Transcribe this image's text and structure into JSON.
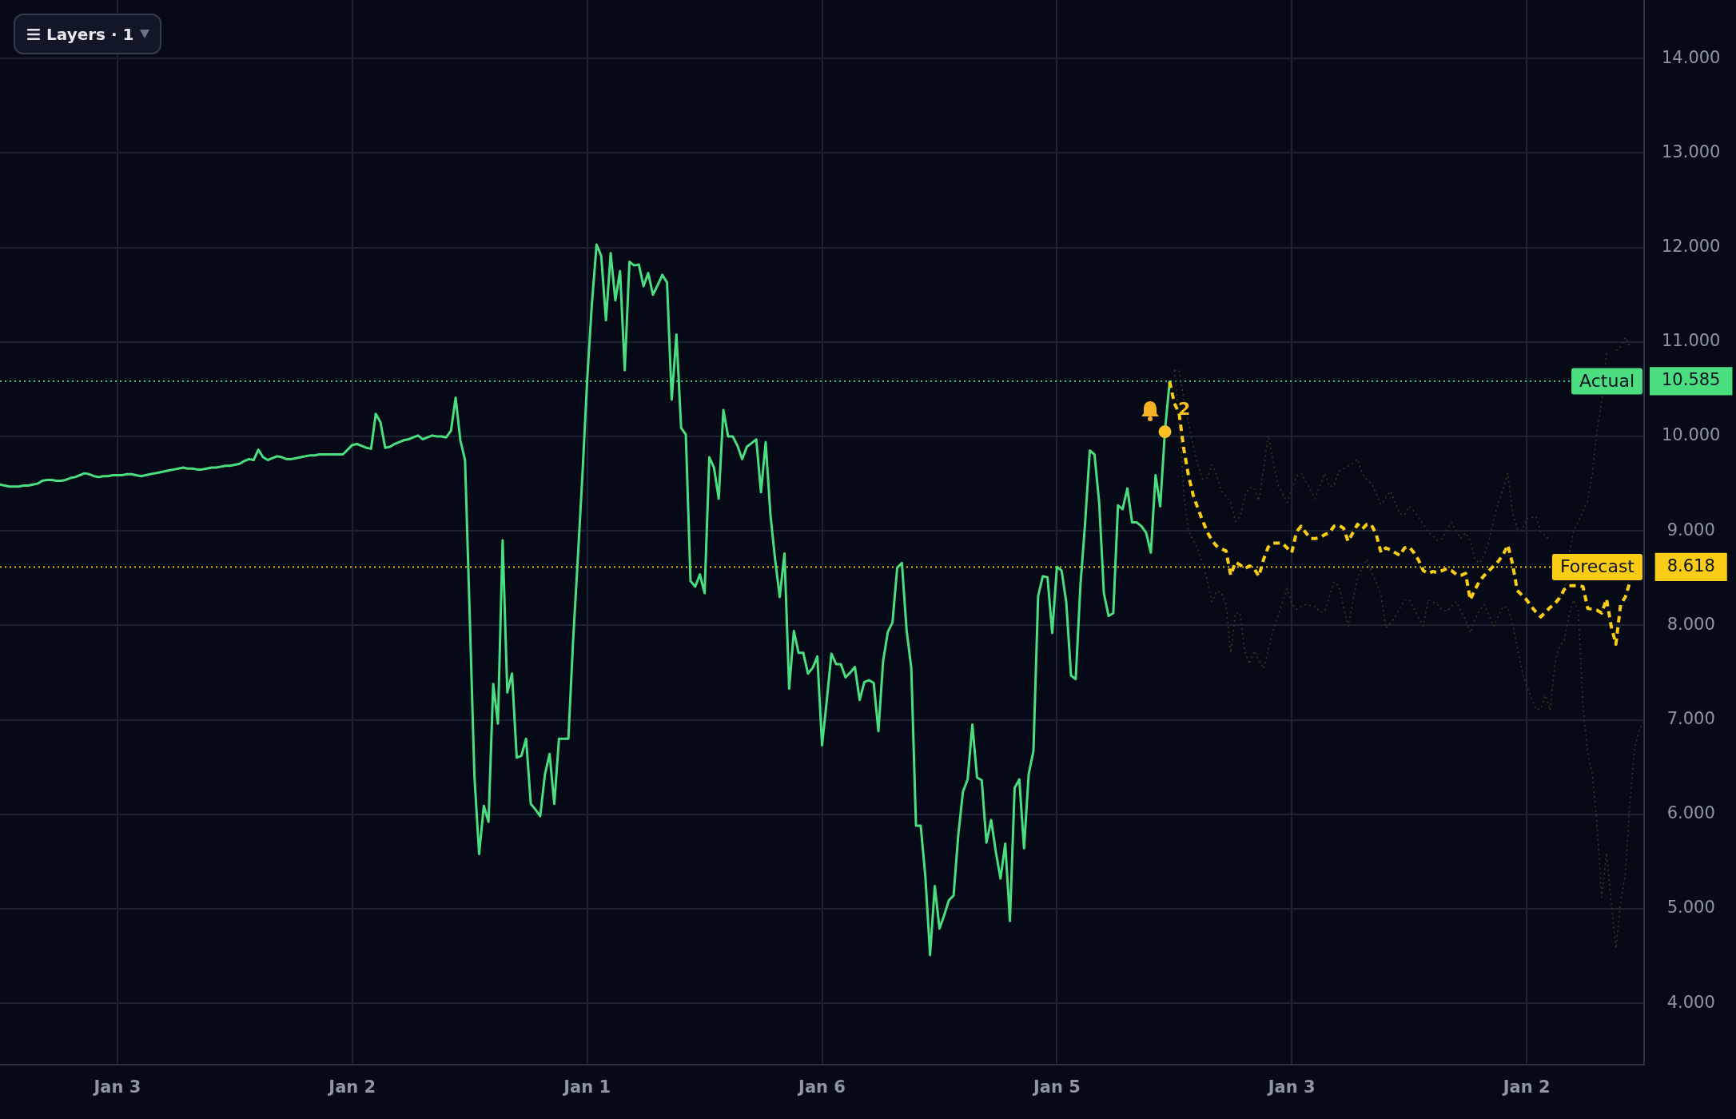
{
  "chart_data": {
    "type": "line",
    "categories": [
      null,
      null,
      null,
      null,
      null,
      null,
      null,
      null,
      null,
      null,
      null,
      null,
      null,
      null,
      null,
      null,
      null,
      null,
      null,
      null,
      null,
      null,
      null,
      null,
      null,
      "Jan 3",
      null,
      null,
      null,
      null,
      null,
      null,
      null,
      null,
      null,
      null,
      null,
      null,
      null,
      null,
      null,
      null,
      null,
      null,
      null,
      null,
      null,
      null,
      null,
      null,
      null,
      null,
      null,
      null,
      null,
      null,
      null,
      null,
      null,
      null,
      null,
      null,
      null,
      null,
      null,
      null,
      null,
      null,
      null,
      null,
      null,
      null,
      null,
      null,
      null,
      "Jan 2",
      null,
      null,
      null,
      null,
      null,
      null,
      null,
      null,
      null,
      null,
      null,
      null,
      null,
      null,
      null,
      null,
      null,
      null,
      null,
      null,
      null,
      null,
      null,
      null,
      null,
      null,
      null,
      null,
      null,
      null,
      null,
      null,
      null,
      null,
      null,
      null,
      null,
      null,
      null,
      null,
      null,
      null,
      null,
      null,
      null,
      null,
      null,
      null,
      null,
      "Jan 1",
      null,
      null,
      null,
      null,
      null,
      null,
      null,
      null,
      null,
      null,
      null,
      null,
      null,
      null,
      null,
      null,
      null,
      null,
      null,
      null,
      null,
      null,
      null,
      null,
      null,
      null,
      null,
      null,
      null,
      null,
      null,
      null,
      null,
      null,
      null,
      null,
      null,
      null,
      null,
      null,
      null,
      null,
      null,
      null,
      null,
      null,
      null,
      null,
      null,
      "Jan 6",
      null,
      null,
      null,
      null,
      null,
      null,
      null,
      null,
      null,
      null,
      null,
      null,
      null,
      null,
      null,
      null,
      null,
      null,
      null,
      null,
      null,
      null,
      null,
      null,
      null,
      null,
      null,
      null,
      null,
      null,
      null,
      null,
      null,
      null,
      null,
      null,
      null,
      null,
      null,
      null,
      null,
      null,
      null,
      null,
      null,
      null,
      null,
      null,
      null,
      "Jan 5",
      null,
      null,
      null,
      null,
      null,
      null,
      null,
      null,
      null,
      null,
      null,
      null,
      null,
      null,
      null,
      null,
      null,
      null,
      null,
      null,
      null,
      null,
      null,
      null,
      null,
      null,
      null,
      null,
      null,
      null,
      null,
      null,
      null,
      null,
      null,
      null,
      null,
      null,
      null,
      null,
      null,
      null,
      null,
      null,
      null,
      null,
      null,
      null,
      null,
      "Jan 3",
      null,
      null,
      null,
      null,
      null,
      null,
      null,
      null,
      null,
      null,
      null,
      null,
      null,
      null,
      null,
      null,
      null,
      null,
      null,
      null,
      null,
      null,
      null,
      null,
      null,
      null,
      null,
      null,
      null,
      null,
      null,
      null,
      null,
      null,
      null,
      null,
      null,
      null,
      null,
      null,
      null,
      null,
      null,
      null,
      null,
      null,
      null,
      null,
      null,
      "Jan 2",
      null,
      null,
      null,
      null,
      null,
      null,
      null,
      null,
      null,
      null,
      null,
      null,
      null,
      null,
      null,
      null,
      null,
      null,
      null,
      null,
      null,
      null,
      null,
      null,
      null
    ],
    "ylim": [
      3.35,
      14.62
    ],
    "yticks": [
      {
        "value": 4,
        "label": "4.000"
      },
      {
        "value": 5,
        "label": "5.000"
      },
      {
        "value": 6,
        "label": "6.000"
      },
      {
        "value": 7,
        "label": "7.000"
      },
      {
        "value": 8,
        "label": "8.000"
      },
      {
        "value": 8.618,
        "label": "8.618"
      },
      {
        "value": 9,
        "label": "9.000"
      },
      {
        "value": 10,
        "label": "10.000"
      },
      {
        "value": 10.585,
        "label": "10.585"
      },
      {
        "value": 11,
        "label": "11.000"
      },
      {
        "value": 12,
        "label": "12.000"
      },
      {
        "value": 13,
        "label": "13.000"
      },
      {
        "value": 14,
        "label": "14.000"
      }
    ],
    "grid": true,
    "series": [
      {
        "color": "#3a3722",
        "line_style": "dotted",
        "values": [
          null,
          null,
          null,
          null,
          null,
          null,
          null,
          null,
          null,
          null,
          null,
          null,
          null,
          null,
          null,
          null,
          null,
          null,
          null,
          null,
          null,
          null,
          null,
          null,
          null,
          null,
          null,
          null,
          null,
          null,
          null,
          null,
          null,
          null,
          null,
          null,
          null,
          null,
          null,
          null,
          null,
          null,
          null,
          null,
          null,
          null,
          null,
          null,
          null,
          null,
          null,
          null,
          null,
          null,
          null,
          null,
          null,
          null,
          null,
          null,
          null,
          null,
          null,
          null,
          null,
          null,
          null,
          null,
          null,
          null,
          null,
          null,
          null,
          null,
          null,
          null,
          null,
          null,
          null,
          null,
          null,
          null,
          null,
          null,
          null,
          null,
          null,
          null,
          null,
          null,
          null,
          null,
          null,
          null,
          null,
          null,
          null,
          null,
          null,
          null,
          null,
          null,
          null,
          null,
          null,
          null,
          null,
          null,
          null,
          null,
          null,
          null,
          null,
          null,
          null,
          null,
          null,
          null,
          null,
          null,
          null,
          null,
          null,
          null,
          null,
          null,
          null,
          null,
          null,
          null,
          null,
          null,
          null,
          null,
          null,
          null,
          null,
          null,
          null,
          null,
          null,
          null,
          null,
          null,
          null,
          null,
          null,
          null,
          null,
          null,
          null,
          null,
          null,
          null,
          null,
          null,
          null,
          null,
          null,
          null,
          null,
          null,
          null,
          null,
          null,
          null,
          null,
          null,
          null,
          null,
          null,
          null,
          null,
          null,
          null,
          null,
          null,
          null,
          null,
          null,
          null,
          null,
          null,
          null,
          null,
          null,
          null,
          null,
          null,
          null,
          null,
          null,
          null,
          null,
          null,
          null,
          null,
          null,
          null,
          null,
          null,
          null,
          null,
          null,
          null,
          null,
          null,
          null,
          null,
          null,
          null,
          null,
          null,
          null,
          null,
          null,
          null,
          null,
          null,
          null,
          null,
          null,
          null,
          null,
          null,
          null,
          null,
          null,
          null,
          null,
          null,
          null,
          null,
          null,
          null,
          null,
          null,
          null,
          null,
          null,
          null,
          null,
          null,
          null,
          null,
          null,
          null,
          null,
          null,
          null,
          10.7,
          10.7,
          10.4,
          10.15,
          9.9,
          9.7,
          9.55,
          9.56,
          9.7,
          9.59,
          9.42,
          9.37,
          9.3,
          9.1,
          9.15,
          9.37,
          9.46,
          9.45,
          9.32,
          9.66,
          10.01,
          9.75,
          9.49,
          9.4,
          9.3,
          9.44,
          9.58,
          9.61,
          9.52,
          9.43,
          9.34,
          9.48,
          9.61,
          9.47,
          9.48,
          9.63,
          9.66,
          9.69,
          9.72,
          9.76,
          9.61,
          9.54,
          9.5,
          9.39,
          9.28,
          9.35,
          9.42,
          9.3,
          9.18,
          9.17,
          9.26,
          9.21,
          9.15,
          9.07,
          8.99,
          8.95,
          8.9,
          8.92,
          9.01,
          9.09,
          9.0,
          8.92,
          8.98,
          8.89,
          8.7,
          8.66,
          8.75,
          8.9,
          9.12,
          9.3,
          9.45,
          9.61,
          9.19,
          9.02,
          9.0,
          9.13,
          9.14,
          9.15,
          8.99,
          8.95,
          8.9,
          null,
          8.31,
          8.33,
          8.75,
          9.0,
          9.1,
          9.21,
          9.32,
          9.61,
          10.06,
          10.37,
          10.88,
          null,
          10.91,
          10.95,
          11.05,
          10.95,
          null,
          null,
          null
        ]
      },
      {
        "color": "#3a3722",
        "line_style": "dotted",
        "values": [
          null,
          null,
          null,
          null,
          null,
          null,
          null,
          null,
          null,
          null,
          null,
          null,
          null,
          null,
          null,
          null,
          null,
          null,
          null,
          null,
          null,
          null,
          null,
          null,
          null,
          null,
          null,
          null,
          null,
          null,
          null,
          null,
          null,
          null,
          null,
          null,
          null,
          null,
          null,
          null,
          null,
          null,
          null,
          null,
          null,
          null,
          null,
          null,
          null,
          null,
          null,
          null,
          null,
          null,
          null,
          null,
          null,
          null,
          null,
          null,
          null,
          null,
          null,
          null,
          null,
          null,
          null,
          null,
          null,
          null,
          null,
          null,
          null,
          null,
          null,
          null,
          null,
          null,
          null,
          null,
          null,
          null,
          null,
          null,
          null,
          null,
          null,
          null,
          null,
          null,
          null,
          null,
          null,
          null,
          null,
          null,
          null,
          null,
          null,
          null,
          null,
          null,
          null,
          null,
          null,
          null,
          null,
          null,
          null,
          null,
          null,
          null,
          null,
          null,
          null,
          null,
          null,
          null,
          null,
          null,
          null,
          null,
          null,
          null,
          null,
          null,
          null,
          null,
          null,
          null,
          null,
          null,
          null,
          null,
          null,
          null,
          null,
          null,
          null,
          null,
          null,
          null,
          null,
          null,
          null,
          null,
          null,
          null,
          null,
          null,
          null,
          null,
          null,
          null,
          null,
          null,
          null,
          null,
          null,
          null,
          null,
          null,
          null,
          null,
          null,
          null,
          null,
          null,
          null,
          null,
          null,
          null,
          null,
          null,
          null,
          null,
          null,
          null,
          null,
          null,
          null,
          null,
          null,
          null,
          null,
          null,
          null,
          null,
          null,
          null,
          null,
          null,
          null,
          null,
          null,
          null,
          null,
          null,
          null,
          null,
          null,
          null,
          null,
          null,
          null,
          null,
          null,
          null,
          null,
          null,
          null,
          null,
          null,
          null,
          null,
          null,
          null,
          null,
          null,
          null,
          null,
          null,
          null,
          null,
          null,
          null,
          null,
          null,
          null,
          null,
          null,
          null,
          null,
          null,
          null,
          null,
          null,
          null,
          null,
          null,
          null,
          null,
          null,
          null,
          null,
          null,
          null,
          null,
          null,
          null,
          10.7,
          10.2,
          9.4,
          9.0,
          8.9,
          8.8,
          8.66,
          8.48,
          8.25,
          8.36,
          8.35,
          8.22,
          7.71,
          8.13,
          8.13,
          7.72,
          7.59,
          7.73,
          7.63,
          7.54,
          7.74,
          7.94,
          8.09,
          8.24,
          8.39,
          8.23,
          8.17,
          8.2,
          8.22,
          8.21,
          8.2,
          8.14,
          8.15,
          8.3,
          8.46,
          8.42,
          8.2,
          7.99,
          8.25,
          8.51,
          8.6,
          8.7,
          8.57,
          8.45,
          8.32,
          7.97,
          8.02,
          8.09,
          8.18,
          8.27,
          8.27,
          8.18,
          8.08,
          7.99,
          8.27,
          8.25,
          8.22,
          8.16,
          8.15,
          8.2,
          8.25,
          8.15,
          8.06,
          7.92,
          8.06,
          8.16,
          8.22,
          8.1,
          7.99,
          8.1,
          8.2,
          8.18,
          8.02,
          7.77,
          7.52,
          7.36,
          7.23,
          7.11,
          7.12,
          7.26,
          7.1,
          7.6,
          7.78,
          7.84,
          8.1,
          8.27,
          8.15,
          7.14,
          6.65,
          6.42,
          5.88,
          5.12,
          5.59,
          5.08,
          4.58,
          5.07,
          5.36,
          6.14,
          6.7,
          6.9,
          6.98
        ]
      },
      {
        "color": "#4ade80",
        "line_style": "solid",
        "values": [
          9.49,
          9.48,
          9.47,
          9.47,
          9.47,
          9.48,
          9.48,
          9.49,
          9.5,
          9.53,
          9.54,
          9.54,
          9.53,
          9.53,
          9.54,
          9.56,
          9.57,
          9.59,
          9.61,
          9.6,
          9.58,
          9.57,
          9.58,
          9.58,
          9.59,
          9.59,
          9.59,
          9.6,
          9.6,
          9.59,
          9.58,
          9.59,
          9.6,
          9.61,
          9.62,
          9.63,
          9.64,
          9.65,
          9.66,
          9.67,
          9.66,
          9.66,
          9.65,
          9.65,
          9.66,
          9.67,
          9.67,
          9.68,
          9.69,
          9.69,
          9.7,
          9.71,
          9.74,
          9.76,
          9.75,
          9.86,
          9.78,
          9.75,
          9.77,
          9.79,
          9.78,
          9.76,
          9.76,
          9.77,
          9.78,
          9.79,
          9.8,
          9.8,
          9.81,
          9.81,
          9.81,
          9.81,
          9.81,
          9.81,
          9.86,
          9.91,
          9.92,
          9.9,
          9.88,
          9.87,
          10.24,
          10.15,
          9.88,
          9.89,
          9.92,
          9.94,
          9.96,
          9.97,
          9.99,
          10.01,
          9.97,
          9.99,
          10.01,
          10.0,
          10.0,
          9.99,
          10.06,
          10.41,
          9.96,
          9.75,
          8.1,
          6.4,
          5.58,
          6.09,
          5.92,
          7.38,
          6.96,
          8.9,
          7.29,
          7.49,
          6.6,
          6.62,
          6.8,
          6.11,
          6.05,
          5.98,
          6.42,
          6.64,
          6.11,
          6.8,
          6.8,
          6.8,
          7.83,
          8.7,
          9.6,
          10.6,
          11.4,
          12.03,
          11.91,
          11.23,
          11.94,
          11.44,
          11.75,
          10.7,
          11.85,
          11.81,
          11.82,
          11.59,
          11.73,
          11.5,
          11.6,
          11.71,
          11.63,
          10.39,
          11.08,
          10.09,
          10.02,
          8.47,
          8.41,
          8.54,
          8.34,
          9.78,
          9.67,
          9.34,
          10.28,
          10.0,
          10.0,
          9.9,
          9.76,
          9.89,
          9.93,
          9.97,
          9.41,
          9.94,
          9.18,
          8.7,
          8.3,
          8.76,
          7.33,
          7.94,
          7.71,
          7.71,
          7.49,
          7.55,
          7.67,
          6.73,
          7.2,
          7.7,
          7.59,
          7.59,
          7.45,
          7.5,
          7.56,
          7.21,
          7.4,
          7.42,
          7.39,
          6.88,
          7.62,
          7.93,
          8.03,
          8.61,
          8.66,
          7.95,
          7.55,
          5.88,
          5.88,
          5.34,
          4.51,
          5.24,
          4.79,
          4.93,
          5.09,
          5.14,
          5.78,
          6.24,
          6.37,
          6.95,
          6.39,
          6.36,
          5.7,
          5.94,
          5.6,
          5.32,
          5.69,
          4.87,
          6.28,
          6.37,
          5.64,
          6.43,
          6.67,
          8.31,
          8.52,
          8.51,
          7.92,
          8.62,
          8.58,
          8.24,
          7.47,
          7.43,
          8.42,
          9.08,
          9.85,
          9.81,
          9.3,
          8.34,
          8.1,
          8.13,
          9.27,
          9.23,
          9.45,
          9.09,
          9.09,
          9.05,
          8.98,
          8.77,
          9.59,
          9.26,
          10.06,
          10.58,
          null,
          null,
          null,
          null,
          null,
          null,
          null,
          null,
          null,
          null,
          null,
          null,
          null,
          null,
          null,
          null,
          null,
          null,
          null,
          null,
          null,
          null,
          null,
          null,
          null,
          null,
          null,
          null,
          null,
          null,
          null,
          null,
          null,
          null,
          null,
          null,
          null,
          null,
          null,
          null,
          null,
          null,
          null,
          null,
          null,
          null,
          null,
          null,
          null,
          null,
          null,
          null,
          null,
          null,
          null,
          null,
          null,
          null,
          null,
          null,
          null,
          null,
          null,
          null,
          null,
          null,
          null,
          null,
          null,
          null,
          null,
          null,
          null,
          null,
          null,
          null,
          null,
          null,
          null,
          null,
          null,
          null,
          null,
          null,
          null,
          null,
          null,
          null,
          null,
          null,
          null,
          null,
          null,
          null,
          null,
          null,
          null,
          null,
          null,
          null,
          null
        ]
      },
      {
        "color": "#facc15",
        "line_style": "dashed",
        "values": [
          null,
          null,
          null,
          null,
          null,
          null,
          null,
          null,
          null,
          null,
          null,
          null,
          null,
          null,
          null,
          null,
          null,
          null,
          null,
          null,
          null,
          null,
          null,
          null,
          null,
          null,
          null,
          null,
          null,
          null,
          null,
          null,
          null,
          null,
          null,
          null,
          null,
          null,
          null,
          null,
          null,
          null,
          null,
          null,
          null,
          null,
          null,
          null,
          null,
          null,
          null,
          null,
          null,
          null,
          null,
          null,
          null,
          null,
          null,
          null,
          null,
          null,
          null,
          null,
          null,
          null,
          null,
          null,
          null,
          null,
          null,
          null,
          null,
          null,
          null,
          null,
          null,
          null,
          null,
          null,
          null,
          null,
          null,
          null,
          null,
          null,
          null,
          null,
          null,
          null,
          null,
          null,
          null,
          null,
          null,
          null,
          null,
          null,
          null,
          null,
          null,
          null,
          null,
          null,
          null,
          null,
          null,
          null,
          null,
          null,
          null,
          null,
          null,
          null,
          null,
          null,
          null,
          null,
          null,
          null,
          null,
          null,
          null,
          null,
          null,
          null,
          null,
          null,
          null,
          null,
          null,
          null,
          null,
          null,
          null,
          null,
          null,
          null,
          null,
          null,
          null,
          null,
          null,
          null,
          null,
          null,
          null,
          null,
          null,
          null,
          null,
          null,
          null,
          null,
          null,
          null,
          null,
          null,
          null,
          null,
          null,
          null,
          null,
          null,
          null,
          null,
          null,
          null,
          null,
          null,
          null,
          null,
          null,
          null,
          null,
          null,
          null,
          null,
          null,
          null,
          null,
          null,
          null,
          null,
          null,
          null,
          null,
          null,
          null,
          null,
          null,
          null,
          null,
          null,
          null,
          null,
          null,
          null,
          null,
          null,
          null,
          null,
          null,
          null,
          null,
          null,
          null,
          null,
          null,
          null,
          null,
          null,
          null,
          null,
          null,
          null,
          null,
          null,
          null,
          null,
          null,
          null,
          null,
          null,
          null,
          null,
          null,
          null,
          null,
          null,
          null,
          null,
          null,
          null,
          null,
          null,
          null,
          null,
          null,
          null,
          null,
          null,
          null,
          null,
          null,
          null,
          null,
          null,
          null,
          10.58,
          10.35,
          10.25,
          9.87,
          9.59,
          9.38,
          9.24,
          9.11,
          8.99,
          8.9,
          8.84,
          8.81,
          8.79,
          8.53,
          8.67,
          8.64,
          8.6,
          8.63,
          8.6,
          8.52,
          8.7,
          8.83,
          8.87,
          8.87,
          8.87,
          8.82,
          8.77,
          8.99,
          9.05,
          8.98,
          8.92,
          8.92,
          8.93,
          8.96,
          8.98,
          9.05,
          9.06,
          9.03,
          8.89,
          8.98,
          9.07,
          9.02,
          9.07,
          9.06,
          8.96,
          8.77,
          8.82,
          8.8,
          8.77,
          8.74,
          8.82,
          8.83,
          8.77,
          8.69,
          8.58,
          8.55,
          8.57,
          8.56,
          8.58,
          8.6,
          8.58,
          8.54,
          8.53,
          8.55,
          8.27,
          8.38,
          8.47,
          8.53,
          8.58,
          8.63,
          8.68,
          8.75,
          8.85,
          8.65,
          8.37,
          8.32,
          8.27,
          8.2,
          8.14,
          8.09,
          8.14,
          8.19,
          8.23,
          8.29,
          8.38,
          8.42,
          8.42,
          8.42,
          8.41,
          8.18,
          8.17,
          8.16,
          8.13,
          8.28,
          7.99,
          7.8,
          8.22,
          8.3,
          8.46,
          null,
          null,
          null
        ]
      },
      {
        "type": "scatter",
        "color": "#fbbf24",
        "values": [
          null,
          null,
          null,
          null,
          null,
          null,
          null,
          null,
          null,
          null,
          null,
          null,
          null,
          null,
          null,
          null,
          null,
          null,
          null,
          null,
          null,
          null,
          null,
          null,
          null,
          null,
          null,
          null,
          null,
          null,
          null,
          null,
          null,
          null,
          null,
          null,
          null,
          null,
          null,
          null,
          null,
          null,
          null,
          null,
          null,
          null,
          null,
          null,
          null,
          null,
          null,
          null,
          null,
          null,
          null,
          null,
          null,
          null,
          null,
          null,
          null,
          null,
          null,
          null,
          null,
          null,
          null,
          null,
          null,
          null,
          null,
          null,
          null,
          null,
          null,
          null,
          null,
          null,
          null,
          null,
          null,
          null,
          null,
          null,
          null,
          null,
          null,
          null,
          null,
          null,
          null,
          null,
          null,
          null,
          null,
          null,
          null,
          null,
          null,
          null,
          null,
          null,
          null,
          null,
          null,
          null,
          null,
          null,
          null,
          null,
          null,
          null,
          null,
          null,
          null,
          null,
          null,
          null,
          null,
          null,
          null,
          null,
          null,
          null,
          null,
          null,
          null,
          null,
          null,
          null,
          null,
          null,
          null,
          null,
          null,
          null,
          null,
          null,
          null,
          null,
          null,
          null,
          null,
          null,
          null,
          null,
          null,
          null,
          null,
          null,
          null,
          null,
          null,
          null,
          null,
          null,
          null,
          null,
          null,
          null,
          null,
          null,
          null,
          null,
          null,
          null,
          null,
          null,
          null,
          null,
          null,
          null,
          null,
          null,
          null,
          null,
          null,
          null,
          null,
          null,
          null,
          null,
          null,
          null,
          null,
          null,
          null,
          null,
          null,
          null,
          null,
          null,
          null,
          null,
          null,
          null,
          null,
          null,
          null,
          null,
          null,
          null,
          null,
          null,
          null,
          null,
          null,
          null,
          null,
          null,
          null,
          null,
          null,
          null,
          null,
          null,
          null,
          null,
          null,
          null,
          null,
          null,
          null,
          null,
          null,
          null,
          null,
          null,
          null,
          null,
          null,
          null,
          null,
          null,
          null,
          null,
          null,
          null,
          null,
          null,
          null,
          null,
          null,
          null,
          null,
          null,
          null,
          null,
          10.05,
          null,
          null,
          null,
          null,
          null,
          null,
          null,
          null,
          null,
          null,
          null,
          null,
          null,
          null,
          null,
          null,
          null,
          null,
          null,
          null,
          null,
          null,
          null,
          null,
          null,
          null,
          null,
          null,
          null,
          null,
          null,
          null,
          null,
          null,
          null,
          null,
          null,
          null,
          null,
          null,
          null,
          null,
          null,
          null,
          null,
          null,
          null,
          null,
          null,
          null,
          null,
          null,
          null,
          null,
          null,
          null,
          null,
          null,
          null,
          null,
          null,
          null,
          null,
          null,
          null,
          null,
          null,
          null,
          null,
          null,
          null,
          null,
          null,
          null,
          null,
          null,
          null,
          null,
          null,
          null,
          null,
          null,
          null,
          null,
          null,
          null,
          null,
          null,
          null,
          null,
          null,
          null,
          null,
          null,
          null,
          null,
          null,
          null,
          null,
          null,
          null,
          null
        ]
      }
    ],
    "ref_lines": [
      {
        "axis": "y",
        "value": 10.585,
        "label": "Actual",
        "color": "#4ade80",
        "line_style": "dotted"
      },
      {
        "axis": "y",
        "value": 8.618,
        "label": "Forecast",
        "color": "#facc15",
        "line_style": "dotted"
      }
    ],
    "annotations": [
      "Layers · 1",
      {
        "text": "2",
        "y": 10.05
      }
    ]
  }
}
